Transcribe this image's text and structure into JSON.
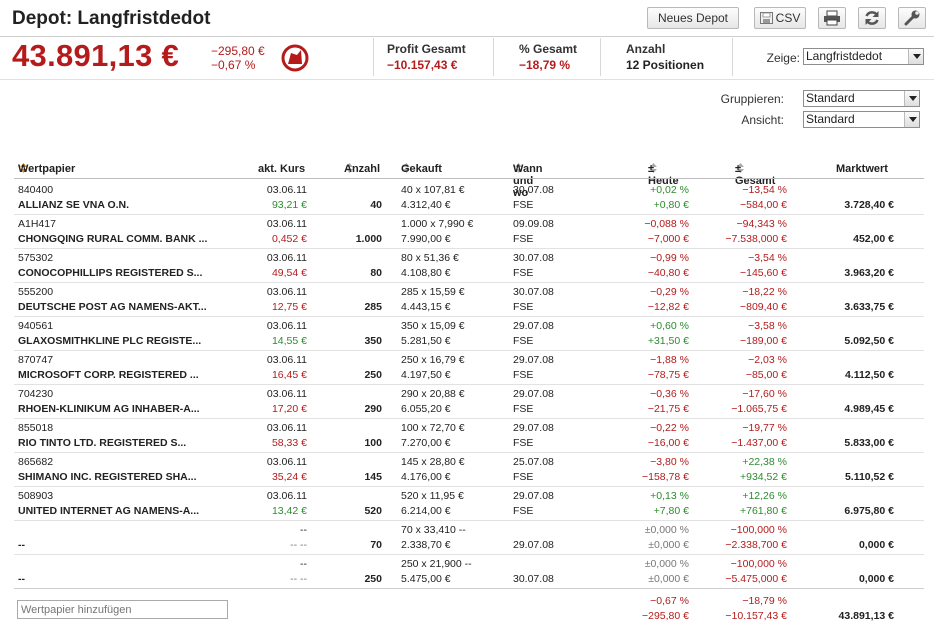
{
  "header": {
    "title": "Depot: Langfristdedot",
    "buttons": {
      "new_depot": "Neues Depot",
      "csv": "CSV"
    }
  },
  "summary": {
    "value": "43.891,13 €",
    "change_abs": "−295,80 €",
    "change_pct": "−0,67 %",
    "profit_label": "Profit Gesamt",
    "profit_value": "−10.157,43 €",
    "pct_label": "% Gesamt",
    "pct_value": "−18,79 %",
    "count_label": "Anzahl",
    "count_value": "12 Positionen",
    "show_label": "Zeige:",
    "show_value": "Langfristdedot"
  },
  "controls": {
    "group_label": "Gruppieren:",
    "group_value": "Standard",
    "view_label": "Ansicht:",
    "view_value": "Standard"
  },
  "table": {
    "headers": {
      "security": "Wertpapier",
      "price": "akt. Kurs",
      "qty": "Anzahl",
      "bought": "Gekauft",
      "when": "Wann und wo",
      "today": "± Heute",
      "total": "± Gesamt",
      "value": "Marktwert"
    },
    "rows": [
      {
        "wkn": "840400",
        "name": "ALLIANZ SE VNA O.N.",
        "date": "03.06.11",
        "price": "93,21 €",
        "price_color": "green",
        "qty": "40",
        "bought1": "40 x 107,81 €",
        "bought2": "4.312,40 €",
        "when1": "30.07.08",
        "when2": "FSE",
        "today1": "+0,02 %",
        "today2": "+0,80 €",
        "today_color": "green",
        "total1": "−13,54 %",
        "total2": "−584,00 €",
        "total_color": "red",
        "value": "3.728,40 €"
      },
      {
        "wkn": "A1H417",
        "name": "CHONGQING RURAL COMM. BANK ...",
        "date": "03.06.11",
        "price": "0,452 €",
        "price_color": "red",
        "qty": "1.000",
        "bought1": "1.000 x 7,990 €",
        "bought2": "7.990,00 €",
        "when1": "09.09.08",
        "when2": "FSE",
        "today1": "−0,088 %",
        "today2": "−7,000 €",
        "today_color": "red",
        "total1": "−94,343 %",
        "total2": "−7.538,000 €",
        "total_color": "red",
        "value": "452,00 €"
      },
      {
        "wkn": "575302",
        "name": "CONOCOPHILLIPS REGISTERED S...",
        "date": "03.06.11",
        "price": "49,54 €",
        "price_color": "red",
        "qty": "80",
        "bought1": "80 x 51,36 €",
        "bought2": "4.108,80 €",
        "when1": "30.07.08",
        "when2": "FSE",
        "today1": "−0,99 %",
        "today2": "−40,80 €",
        "today_color": "red",
        "total1": "−3,54 %",
        "total2": "−145,60 €",
        "total_color": "red",
        "value": "3.963,20 €"
      },
      {
        "wkn": "555200",
        "name": "DEUTSCHE POST AG NAMENS-AKT...",
        "date": "03.06.11",
        "price": "12,75 €",
        "price_color": "red",
        "qty": "285",
        "bought1": "285 x 15,59 €",
        "bought2": "4.443,15 €",
        "when1": "30.07.08",
        "when2": "FSE",
        "today1": "−0,29 %",
        "today2": "−12,82 €",
        "today_color": "red",
        "total1": "−18,22 %",
        "total2": "−809,40 €",
        "total_color": "red",
        "value": "3.633,75 €"
      },
      {
        "wkn": "940561",
        "name": "GLAXOSMITHKLINE PLC REGISTE...",
        "date": "03.06.11",
        "price": "14,55 €",
        "price_color": "green",
        "qty": "350",
        "bought1": "350 x 15,09 €",
        "bought2": "5.281,50 €",
        "when1": "29.07.08",
        "when2": "FSE",
        "today1": "+0,60 %",
        "today2": "+31,50 €",
        "today_color": "green",
        "total1": "−3,58 %",
        "total2": "−189,00 €",
        "total_color": "red",
        "value": "5.092,50 €"
      },
      {
        "wkn": "870747",
        "name": "MICROSOFT CORP. REGISTERED ...",
        "date": "03.06.11",
        "price": "16,45 €",
        "price_color": "red",
        "qty": "250",
        "bought1": "250 x 16,79 €",
        "bought2": "4.197,50 €",
        "when1": "29.07.08",
        "when2": "FSE",
        "today1": "−1,88 %",
        "today2": "−78,75 €",
        "today_color": "red",
        "total1": "−2,03 %",
        "total2": "−85,00 €",
        "total_color": "red",
        "value": "4.112,50 €"
      },
      {
        "wkn": "704230",
        "name": "RHOEN-KLINIKUM AG INHABER-A...",
        "date": "03.06.11",
        "price": "17,20 €",
        "price_color": "red",
        "qty": "290",
        "bought1": "290 x 20,88 €",
        "bought2": "6.055,20 €",
        "when1": "29.07.08",
        "when2": "FSE",
        "today1": "−0,36 %",
        "today2": "−21,75 €",
        "today_color": "red",
        "total1": "−17,60 %",
        "total2": "−1.065,75 €",
        "total_color": "red",
        "value": "4.989,45 €"
      },
      {
        "wkn": "855018",
        "name": "RIO TINTO LTD. REGISTERED S...",
        "date": "03.06.11",
        "price": "58,33 €",
        "price_color": "red",
        "qty": "100",
        "bought1": "100 x 72,70 €",
        "bought2": "7.270,00 €",
        "when1": "29.07.08",
        "when2": "FSE",
        "today1": "−0,22 %",
        "today2": "−16,00 €",
        "today_color": "red",
        "total1": "−19,77 %",
        "total2": "−1.437,00 €",
        "total_color": "red",
        "value": "5.833,00 €"
      },
      {
        "wkn": "865682",
        "name": "SHIMANO INC. REGISTERED SHA...",
        "date": "03.06.11",
        "price": "35,24 €",
        "price_color": "red",
        "qty": "145",
        "bought1": "145 x 28,80 €",
        "bought2": "4.176,00 €",
        "when1": "25.07.08",
        "when2": "FSE",
        "today1": "−3,80 %",
        "today2": "−158,78 €",
        "today_color": "red",
        "total1": "+22,38 %",
        "total2": "+934,52 €",
        "total_color": "green",
        "value": "5.110,52 €"
      },
      {
        "wkn": "508903",
        "name": "UNITED INTERNET AG NAMENS-A...",
        "date": "03.06.11",
        "price": "13,42 €",
        "price_color": "green",
        "qty": "520",
        "bought1": "520 x 11,95 €",
        "bought2": "6.214,00 €",
        "when1": "29.07.08",
        "when2": "FSE",
        "today1": "+0,13 %",
        "today2": "+7,80 €",
        "today_color": "green",
        "total1": "+12,26 %",
        "total2": "+761,80 €",
        "total_color": "green",
        "value": "6.975,80 €"
      }
    ],
    "extra_rows": [
      {
        "name": "--",
        "date": "--",
        "price": "-- --",
        "qty": "70",
        "bought1": "70 x 33,410 --",
        "bought2": "2.338,70 €",
        "when": "29.07.08",
        "today1": "±0,000 %",
        "today2": "±0,000 €",
        "total1": "−100,000 %",
        "total2": "−2.338,700 €",
        "value": "0,000 €"
      },
      {
        "name": "--",
        "date": "--",
        "price": "-- --",
        "qty": "250",
        "bought1": "250 x 21,900 --",
        "bought2": "5.475,00 €",
        "when": "30.07.08",
        "today1": "±0,000 %",
        "today2": "±0,000 €",
        "total1": "−100,000 %",
        "total2": "−5.475,000 €",
        "value": "0,000 €"
      }
    ],
    "totals": {
      "today1": "−0,67 %",
      "today2": "−295,80 €",
      "total1": "−18,79 %",
      "total2": "−10.157,43 €",
      "value": "43.891,13 €"
    }
  },
  "add_security": {
    "placeholder": "Wertpapier hinzufügen"
  },
  "colors": {
    "red": "#b51b1b",
    "green": "#2e8b2e",
    "grey": "#777777"
  },
  "icons": [
    "floppy-icon",
    "printer-icon",
    "refresh-icon",
    "wrench-icon",
    "sort-icon",
    "onvista-logo"
  ]
}
